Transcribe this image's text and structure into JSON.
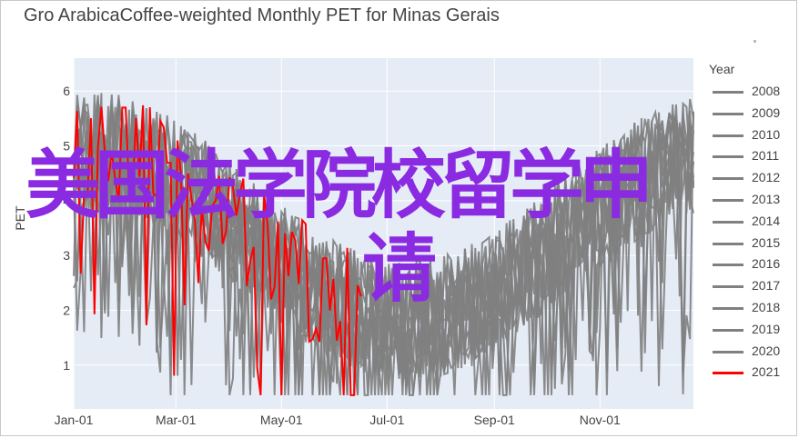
{
  "title": "Gro ArabicaCoffee-weighted Monthly PET for Minas Gerais",
  "watermark": {
    "line1": "美国法学院校留学申",
    "line2": "请"
  },
  "chart_data": {
    "type": "line",
    "title": "Gro ArabicaCoffee-weighted Monthly PET for Minas Gerais",
    "xlabel": "",
    "ylabel": "PET",
    "x_tick_labels": [
      "Jan-01",
      "Mar-01",
      "May-01",
      "Jul-01",
      "Sep-01",
      "Nov-01"
    ],
    "x_tick_days": [
      0,
      59,
      120,
      181,
      243,
      304
    ],
    "x_range_days": [
      0,
      358
    ],
    "ylim": [
      0.2,
      6.6
    ],
    "y_ticks": [
      1,
      2,
      3,
      4,
      5,
      6
    ],
    "grid": true,
    "legend_title": "Year",
    "legend_position": "right",
    "series_colors": {
      "gray": "#808080",
      "red": "#ff0000"
    },
    "series": [
      {
        "name": "2008",
        "color": "#808080",
        "x_end_day": 358,
        "seed": 11
      },
      {
        "name": "2009",
        "color": "#808080",
        "x_end_day": 358,
        "seed": 23
      },
      {
        "name": "2010",
        "color": "#808080",
        "x_end_day": 358,
        "seed": 37
      },
      {
        "name": "2011",
        "color": "#808080",
        "x_end_day": 358,
        "seed": 41
      },
      {
        "name": "2012",
        "color": "#808080",
        "x_end_day": 358,
        "seed": 53
      },
      {
        "name": "2013",
        "color": "#808080",
        "x_end_day": 358,
        "seed": 67
      },
      {
        "name": "2014",
        "color": "#808080",
        "x_end_day": 358,
        "seed": 71
      },
      {
        "name": "2015",
        "color": "#808080",
        "x_end_day": 358,
        "seed": 83
      },
      {
        "name": "2016",
        "color": "#808080",
        "x_end_day": 358,
        "seed": 97
      },
      {
        "name": "2017",
        "color": "#808080",
        "x_end_day": 358,
        "seed": 101
      },
      {
        "name": "2018",
        "color": "#808080",
        "x_end_day": 358,
        "seed": 113
      },
      {
        "name": "2019",
        "color": "#808080",
        "x_end_day": 358,
        "seed": 127
      },
      {
        "name": "2020",
        "color": "#808080",
        "x_end_day": 358,
        "seed": 131
      },
      {
        "name": "2021",
        "color": "#ff0000",
        "x_end_day": 166,
        "seed": 149
      }
    ]
  }
}
